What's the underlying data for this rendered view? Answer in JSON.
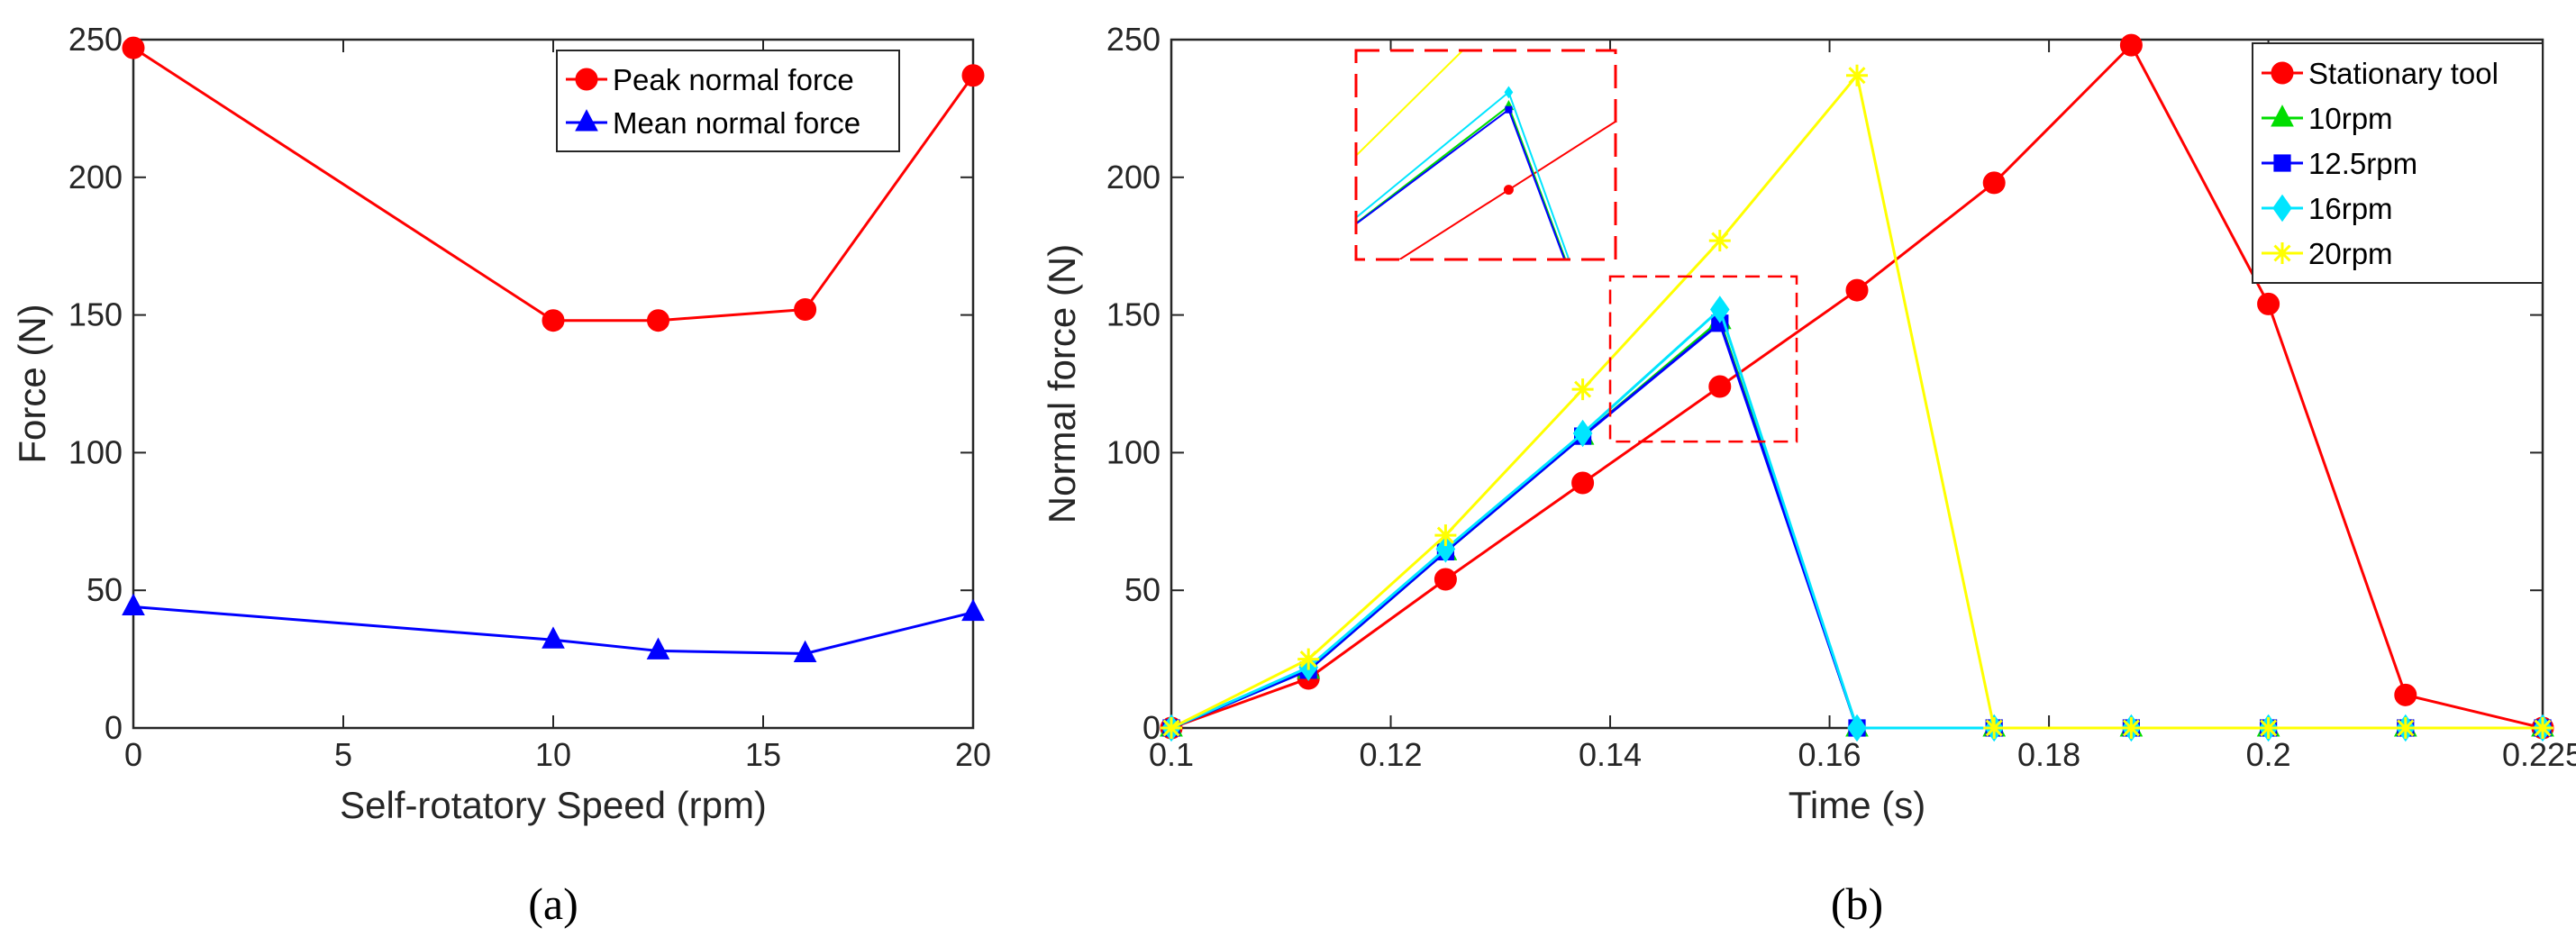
{
  "chart_data": [
    {
      "type": "line",
      "caption": "(a)",
      "xlabel": "Self-rotatory Speed (rpm)",
      "ylabel": "Force (N)",
      "xlim": [
        0,
        20
      ],
      "ylim": [
        0,
        250
      ],
      "xticks": [
        0,
        5,
        10,
        15,
        20
      ],
      "xtick_labels": [
        "0",
        "5",
        "10",
        "15",
        "20"
      ],
      "yticks": [
        0,
        50,
        100,
        150,
        200,
        250
      ],
      "ytick_labels": [
        "0",
        "50",
        "100",
        "150",
        "200",
        "250"
      ],
      "x": [
        0,
        10,
        12.5,
        16,
        20
      ],
      "series": [
        {
          "name": "Peak normal force",
          "marker": "circle",
          "color": "#ff0000",
          "values": [
            247,
            148,
            148,
            152,
            237
          ]
        },
        {
          "name": "Mean normal force",
          "marker": "triangle",
          "color": "#0000ff",
          "values": [
            44,
            32,
            28,
            27,
            42
          ]
        }
      ],
      "legend": "top-right"
    },
    {
      "type": "line",
      "caption": "(b)",
      "xlabel": "Time (s)",
      "ylabel": "Normal force (N)",
      "xlim": [
        0.1,
        0.225
      ],
      "ylim": [
        0,
        250
      ],
      "xticks": [
        0.1,
        0.12,
        0.14,
        0.16,
        0.18,
        0.2,
        0.225
      ],
      "xtick_labels": [
        "0.1",
        "0.12",
        "0.14",
        "0.16",
        "0.18",
        "0.2",
        "0.225"
      ],
      "yticks": [
        0,
        50,
        100,
        150,
        200,
        250
      ],
      "ytick_labels": [
        "0",
        "50",
        "100",
        "150",
        "200",
        "250"
      ],
      "series": [
        {
          "name": "Stationary tool",
          "marker": "circle",
          "color": "#ff0000",
          "x": [
            0.1,
            0.1125,
            0.125,
            0.1375,
            0.15,
            0.1625,
            0.175,
            0.1875,
            0.2,
            0.2125,
            0.225
          ],
          "values": [
            0,
            18,
            54,
            89,
            124,
            159,
            198,
            248,
            154,
            12,
            0
          ]
        },
        {
          "name": "10rpm",
          "marker": "triangle",
          "color": "#00dd00",
          "x": [
            0.1,
            0.1125,
            0.125,
            0.1375,
            0.15,
            0.1625,
            0.175,
            0.1875,
            0.2,
            0.2125,
            0.225
          ],
          "values": [
            0,
            21,
            64,
            106,
            148,
            0,
            0,
            0,
            0,
            0,
            0
          ]
        },
        {
          "name": "12.5rpm",
          "marker": "square",
          "color": "#0000ff",
          "x": [
            0.1,
            0.1125,
            0.125,
            0.1375,
            0.15,
            0.1625,
            0.175,
            0.1875,
            0.2,
            0.2125,
            0.225
          ],
          "values": [
            0,
            21,
            64,
            106,
            147,
            0,
            0,
            0,
            0,
            0,
            0
          ]
        },
        {
          "name": "16rpm",
          "marker": "diamond",
          "color": "#00e5ff",
          "x": [
            0.1,
            0.1125,
            0.125,
            0.1375,
            0.15,
            0.1625,
            0.175,
            0.1875,
            0.2,
            0.2125,
            0.225
          ],
          "values": [
            0,
            22,
            65,
            107,
            152,
            0,
            0,
            0,
            0,
            0,
            0
          ]
        },
        {
          "name": "20rpm",
          "marker": "star",
          "color": "#ffff00",
          "x": [
            0.1,
            0.1125,
            0.125,
            0.1375,
            0.15,
            0.1625,
            0.175,
            0.1875,
            0.2,
            0.2125,
            0.225
          ],
          "values": [
            0,
            25,
            70,
            123,
            177,
            237,
            0,
            0,
            0,
            0,
            0
          ]
        }
      ],
      "legend": "top-right",
      "zoom_region": {
        "x": [
          0.14,
          0.157
        ],
        "y": [
          104,
          164
        ]
      }
    }
  ]
}
